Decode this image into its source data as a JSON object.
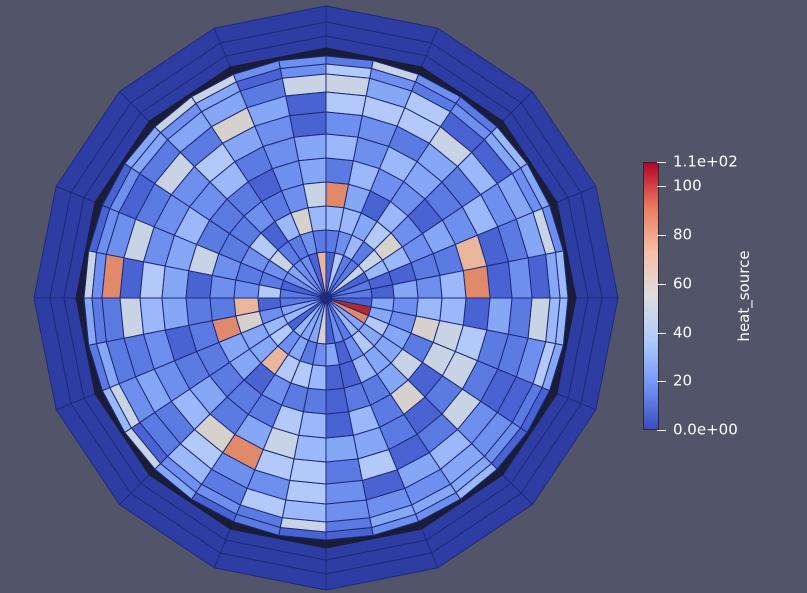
{
  "scalar_field": "heat_source",
  "colormap": {
    "name": "Cool to Warm",
    "range": [
      0,
      110
    ],
    "stops": [
      "#3b4cc0",
      "#7396f5",
      "#b0cbfc",
      "#dddddd",
      "#f6bfa6",
      "#ea7b60",
      "#b40426"
    ]
  },
  "colors": {
    "background": "#525469",
    "mesh_edges": "#1e2a7a",
    "outer_ring": "#2e3da3",
    "dark_gap": "#1a1d3a"
  },
  "colorbar": {
    "title": "heat_source",
    "max_label": "1.1e+02",
    "min_label": "0.0e+00",
    "ticks": [
      {
        "label": "1.1e+02",
        "value": 110
      },
      {
        "label": "100",
        "value": 100
      },
      {
        "label": "80",
        "value": 80
      },
      {
        "label": "60",
        "value": 60
      },
      {
        "label": "40",
        "value": 40
      },
      {
        "label": "20",
        "value": 20
      },
      {
        "label": "0.0e+00",
        "value": 0
      }
    ]
  }
}
